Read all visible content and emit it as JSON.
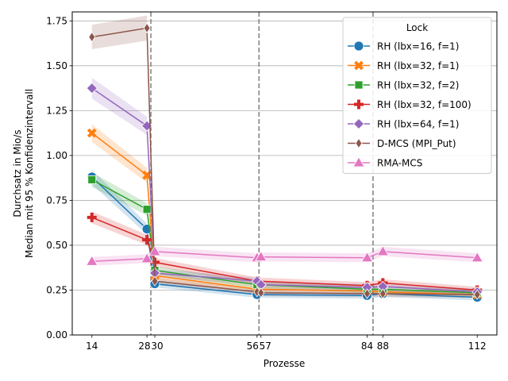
{
  "chart_data": {
    "type": "line",
    "title": "",
    "xlabel": "Prozesse",
    "ylabel_lines": [
      "Durchsatz in Mio/s",
      "Median mit 95 % Konfidenzintervall"
    ],
    "xlim": [
      9,
      117
    ],
    "ylim": [
      0,
      1.8
    ],
    "x_ticks": [
      14,
      28,
      30,
      56,
      57,
      84,
      88,
      112
    ],
    "x_tick_labels": [
      "14",
      "28",
      "30",
      "56",
      "57",
      "84",
      "88",
      "112"
    ],
    "y_ticks": [
      0,
      0.25,
      0.5,
      0.75,
      1.0,
      1.25,
      1.5,
      1.75
    ],
    "y_tick_labels": [
      "0.00",
      "0.25",
      "0.50",
      "0.75",
      "1.00",
      "1.25",
      "1.50",
      "1.75"
    ],
    "grid": "horizontal",
    "vlines": [
      29,
      56.5,
      85.5
    ],
    "legend_title": "Lock",
    "legend_position": "top-right",
    "series": [
      {
        "name": "RH (lbx=16, f=1)",
        "color": "#1f77b4",
        "marker": "circle",
        "x": [
          14,
          28,
          30,
          56,
          84,
          88,
          112
        ],
        "y": [
          0.88,
          0.59,
          0.285,
          0.225,
          0.22,
          0.23,
          0.21
        ]
      },
      {
        "name": "RH (lbx=32, f=1)",
        "color": "#ff7f0e",
        "marker": "x",
        "x": [
          14,
          28,
          30,
          56,
          84,
          88,
          112
        ],
        "y": [
          1.125,
          0.89,
          0.33,
          0.255,
          0.245,
          0.24,
          0.225
        ]
      },
      {
        "name": "RH (lbx=32, f=2)",
        "color": "#2ca02c",
        "marker": "square",
        "x": [
          14,
          28,
          30,
          56,
          84,
          88,
          112
        ],
        "y": [
          0.865,
          0.7,
          0.36,
          0.28,
          0.255,
          0.255,
          0.235
        ]
      },
      {
        "name": "RH (lbx=32, f=100)",
        "color": "#d62728",
        "marker": "plus",
        "x": [
          14,
          28,
          30,
          56,
          84,
          88,
          112
        ],
        "y": [
          0.655,
          0.53,
          0.405,
          0.3,
          0.275,
          0.29,
          0.25
        ]
      },
      {
        "name": "RH (lbx=64, f=1)",
        "color": "#9467bd",
        "marker": "diamond",
        "x": [
          14,
          28,
          30,
          56,
          57,
          84,
          88,
          112
        ],
        "y": [
          1.375,
          1.165,
          0.345,
          0.3,
          0.28,
          0.265,
          0.27,
          0.24
        ]
      },
      {
        "name": "D-MCS (MPI_Put)",
        "color": "#8c564b",
        "marker": "thin_diamond",
        "x": [
          14,
          28,
          30,
          56,
          57,
          84,
          88,
          112
        ],
        "y": [
          1.66,
          1.71,
          0.3,
          0.24,
          0.235,
          0.23,
          0.23,
          0.225
        ]
      },
      {
        "name": "RMA-MCS",
        "color": "#e377c2",
        "marker": "triangle",
        "x": [
          14,
          28,
          30,
          56,
          57,
          84,
          88,
          112
        ],
        "y": [
          0.41,
          0.425,
          0.465,
          0.43,
          0.435,
          0.43,
          0.465,
          0.43
        ]
      }
    ]
  }
}
